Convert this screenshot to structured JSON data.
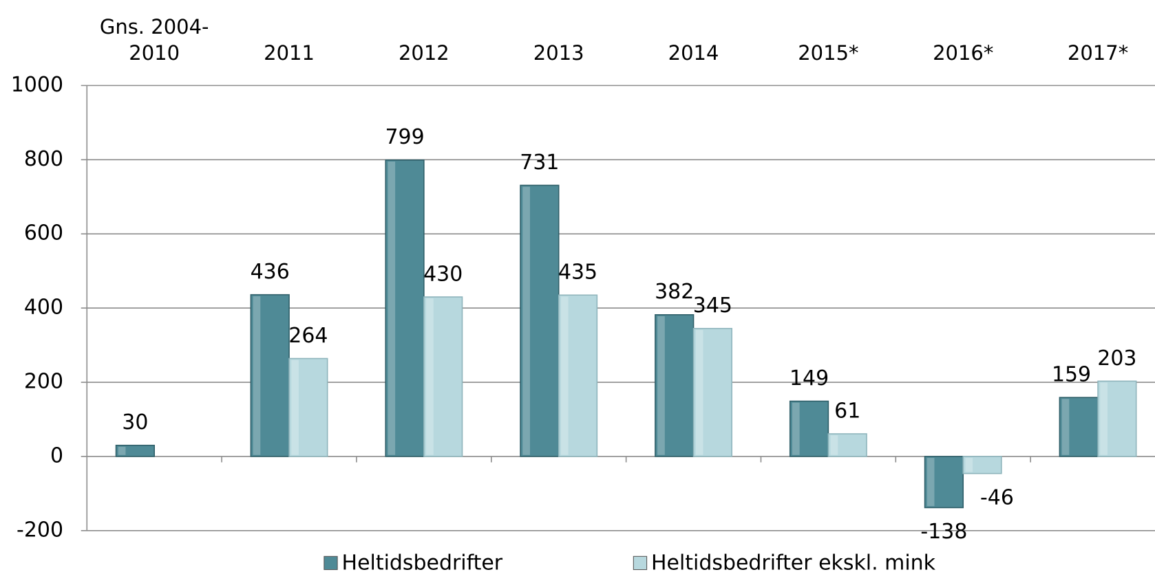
{
  "chart_data": {
    "type": "bar",
    "categories": [
      "Gns. 2004-2010",
      "2011",
      "2012",
      "2013",
      "2014",
      "2015*",
      "2016*",
      "2017*"
    ],
    "series": [
      {
        "name": "Heltidsbedrifter",
        "color": "#4f8a96",
        "values": [
          30,
          436,
          799,
          731,
          382,
          149,
          -138,
          159
        ]
      },
      {
        "name": "Heltidsbedrifter ekskl. mink",
        "color": "#b7d8de",
        "values": [
          null,
          264,
          430,
          435,
          345,
          61,
          -46,
          203
        ]
      }
    ],
    "ylim": [
      -200,
      1000
    ],
    "yticks": [
      -200,
      0,
      200,
      400,
      600,
      800,
      1000
    ],
    "grid": true
  }
}
